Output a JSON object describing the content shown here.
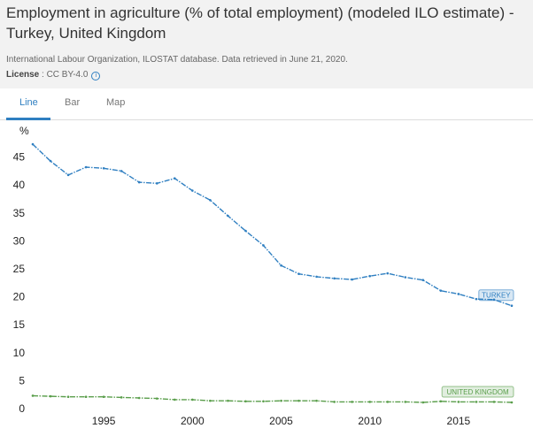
{
  "header": {
    "title": "Employment in agriculture (% of total employment) (modeled ILO estimate) - Turkey, United Kingdom",
    "source": "International Labour Organization, ILOSTAT database. Data retrieved in June 21, 2020.",
    "license_label": "License",
    "license_value": " : CC BY-4.0",
    "info_icon": "info-icon"
  },
  "tabs": [
    {
      "label": "Line",
      "active": true
    },
    {
      "label": "Bar",
      "active": false
    },
    {
      "label": "Map",
      "active": false
    }
  ],
  "chart_data": {
    "type": "line",
    "ylabel": "%",
    "ylim": [
      0,
      47
    ],
    "yticks": [
      0,
      5,
      10,
      15,
      20,
      25,
      30,
      35,
      40,
      45
    ],
    "xlim": [
      1991,
      2018
    ],
    "xticks": [
      1995,
      2000,
      2005,
      2010,
      2015
    ],
    "grid": false,
    "x": [
      1991,
      1992,
      1993,
      1994,
      1995,
      1996,
      1997,
      1998,
      1999,
      2000,
      2001,
      2002,
      2003,
      2004,
      2005,
      2006,
      2007,
      2008,
      2009,
      2010,
      2011,
      2012,
      2013,
      2014,
      2015,
      2016,
      2017,
      2018
    ],
    "series": [
      {
        "name": "TURKEY",
        "color": "#2f7fc1",
        "values": [
          47.3,
          44.3,
          41.8,
          43.2,
          43.0,
          42.5,
          40.5,
          40.3,
          41.2,
          39.0,
          37.3,
          34.5,
          31.8,
          29.2,
          25.6,
          24.1,
          23.6,
          23.3,
          23.1,
          23.7,
          24.2,
          23.5,
          23.0,
          21.1,
          20.5,
          19.6,
          19.5,
          18.4
        ]
      },
      {
        "name": "UNITED KINGDOM",
        "color": "#5a9e4b",
        "values": [
          2.3,
          2.2,
          2.1,
          2.1,
          2.1,
          2.0,
          1.9,
          1.8,
          1.6,
          1.6,
          1.4,
          1.4,
          1.3,
          1.3,
          1.4,
          1.4,
          1.4,
          1.2,
          1.2,
          1.2,
          1.2,
          1.2,
          1.1,
          1.3,
          1.2,
          1.2,
          1.2,
          1.1
        ]
      }
    ]
  }
}
